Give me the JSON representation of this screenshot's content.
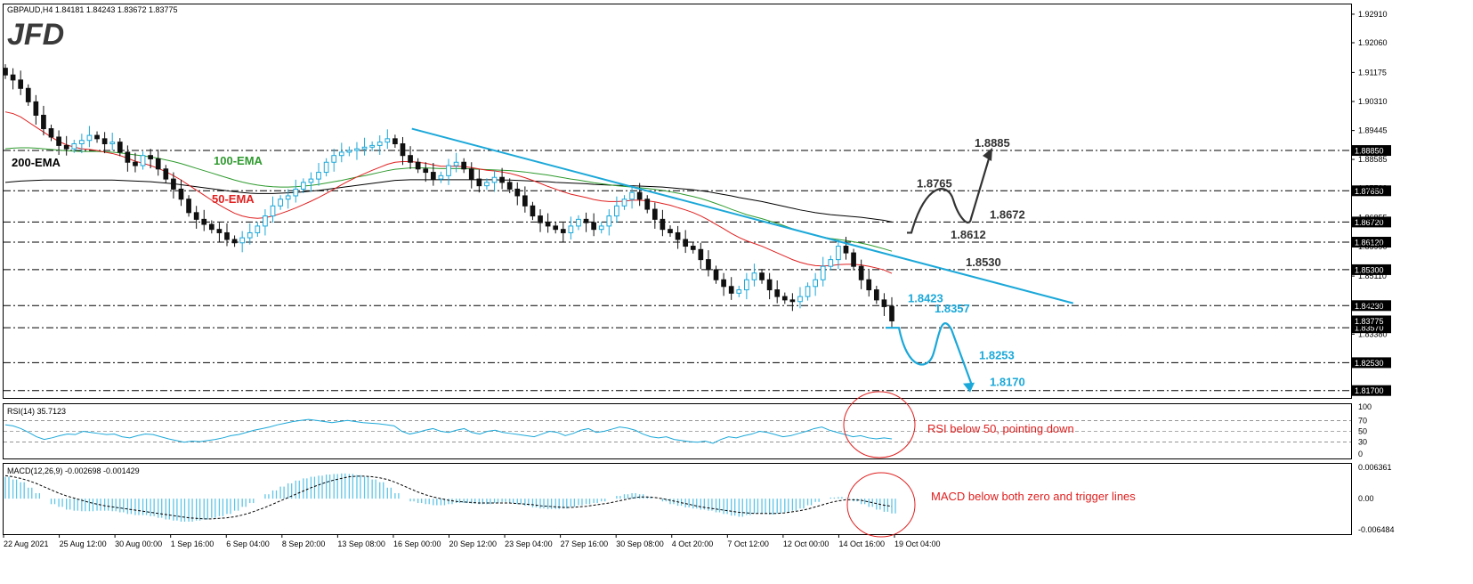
{
  "header": {
    "symbol_info": "GBPAUD,H4  1.84181 1.84243 1.83672 1.83775",
    "logo": "JFD"
  },
  "chart_data": {
    "type": "candlestick",
    "symbol": "GBPAUD",
    "timeframe": "H4",
    "ohlc_last": {
      "open": 1.84181,
      "high": 1.84243,
      "low": 1.83672,
      "close": 1.83775
    },
    "price_axis_ticks": [
      1.9291,
      1.9206,
      1.91175,
      1.9031,
      1.89445,
      1.88585,
      1.8772,
      1.86855,
      1.8599,
      1.8511,
      1.8425,
      1.8338
    ],
    "price_range": [
      1.8148,
      1.932
    ],
    "current_price_label": "1.83775",
    "levels": [
      {
        "value": 1.8885,
        "label": "1.8885",
        "color": "#333333"
      },
      {
        "value": 1.8765,
        "label": "1.8765",
        "color": "#333333"
      },
      {
        "value": 1.8672,
        "label": "1.8672",
        "color": "#333333"
      },
      {
        "value": 1.8612,
        "label": "1.8612",
        "color": "#333333"
      },
      {
        "value": 1.853,
        "label": "1.8530",
        "color": "#333333"
      },
      {
        "value": 1.8423,
        "label": "1.8423",
        "color": "#1ba8d9"
      },
      {
        "value": 1.8357,
        "label": "1.8357",
        "color": "#1ba8d9"
      },
      {
        "value": 1.8253,
        "label": "1.8253",
        "color": "#1ba8d9"
      },
      {
        "value": 1.817,
        "label": "1.8170",
        "color": "#1ba8d9"
      }
    ],
    "level_box_labels": [
      "1.88850",
      "1.87650",
      "1.86720",
      "1.86120",
      "1.85300",
      "1.84230",
      "1.83570",
      "1.82530",
      "1.81700"
    ],
    "ema_labels": [
      {
        "text": "200-EMA",
        "color": "#000000"
      },
      {
        "text": "100-EMA",
        "color": "#2e9a2e"
      },
      {
        "text": "50-EMA",
        "color": "#e02020"
      }
    ],
    "x_axis_labels": [
      "22 Aug 2021",
      "25 Aug 12:00",
      "30 Aug 00:00",
      "1 Sep 16:00",
      "6 Sep 04:00",
      "8 Sep 20:00",
      "13 Sep 08:00",
      "16 Sep 00:00",
      "20 Sep 12:00",
      "23 Sep 04:00",
      "27 Sep 16:00",
      "30 Sep 08:00",
      "4 Oct 20:00",
      "7 Oct 12:00",
      "12 Oct 00:00",
      "14 Oct 16:00",
      "19 Oct 04:00"
    ],
    "closes": [
      1.911,
      1.9095,
      1.907,
      1.903,
      1.899,
      1.895,
      1.8925,
      1.89,
      1.889,
      1.8905,
      1.8915,
      1.893,
      1.892,
      1.8905,
      1.891,
      1.888,
      1.885,
      1.884,
      1.887,
      1.886,
      1.883,
      1.88,
      1.877,
      1.874,
      1.87,
      1.868,
      1.8665,
      1.865,
      1.864,
      1.862,
      1.861,
      1.8625,
      1.864,
      1.866,
      1.869,
      1.872,
      1.874,
      1.875,
      1.877,
      1.879,
      1.88,
      1.882,
      1.885,
      1.887,
      1.888,
      1.8885,
      1.889,
      1.8895,
      1.89,
      1.891,
      1.892,
      1.8905,
      1.887,
      1.885,
      1.883,
      1.882,
      1.88,
      1.881,
      1.884,
      1.885,
      1.883,
      1.88,
      1.878,
      1.879,
      1.8805,
      1.879,
      1.877,
      1.875,
      1.872,
      1.869,
      1.867,
      1.866,
      1.865,
      1.864,
      1.866,
      1.868,
      1.867,
      1.865,
      1.866,
      1.869,
      1.872,
      1.874,
      1.876,
      1.874,
      1.871,
      1.868,
      1.865,
      1.864,
      1.862,
      1.86,
      1.859,
      1.856,
      1.853,
      1.85,
      1.848,
      1.846,
      1.847,
      1.85,
      1.852,
      1.85,
      1.847,
      1.845,
      1.844,
      1.8435,
      1.845,
      1.848,
      1.85,
      1.854,
      1.856,
      1.86,
      1.858,
      1.854,
      1.85,
      1.847,
      1.844,
      1.842,
      1.83775
    ],
    "ema50": [
      1.9,
      1.8995,
      1.8985,
      1.897,
      1.8955,
      1.894,
      1.8925,
      1.8912,
      1.8902,
      1.8895,
      1.889,
      1.8888,
      1.8885,
      1.888,
      1.8876,
      1.887,
      1.8862,
      1.8853,
      1.8847,
      1.884,
      1.8832,
      1.8822,
      1.881,
      1.8797,
      1.8782,
      1.8767,
      1.8752,
      1.8737,
      1.8723,
      1.871,
      1.8698,
      1.869,
      1.8685,
      1.8683,
      1.8685,
      1.869,
      1.8697,
      1.8705,
      1.8714,
      1.8724,
      1.8734,
      1.8745,
      1.8757,
      1.877,
      1.8783,
      1.8795,
      1.8806,
      1.8816,
      1.8826,
      1.8835,
      1.8844,
      1.885,
      1.8852,
      1.8852,
      1.885,
      1.8847,
      1.8842,
      1.8838,
      1.8838,
      1.8838,
      1.8837,
      1.8834,
      1.883,
      1.8826,
      1.8824,
      1.8821,
      1.8817,
      1.8811,
      1.8804,
      1.8796,
      1.8787,
      1.8778,
      1.877,
      1.8762,
      1.8755,
      1.875,
      1.8745,
      1.8739,
      1.8735,
      1.8733,
      1.8733,
      1.8734,
      1.8737,
      1.8737,
      1.8735,
      1.8732,
      1.8727,
      1.8722,
      1.8715,
      1.8708,
      1.87,
      1.869,
      1.8678,
      1.8665,
      1.8652,
      1.8638,
      1.8626,
      1.8616,
      1.8608,
      1.86,
      1.859,
      1.858,
      1.857,
      1.856,
      1.8552,
      1.8546,
      1.8542,
      1.8541,
      1.8542,
      1.8545,
      1.8546,
      1.8546,
      1.8544,
      1.854,
      1.8535,
      1.8529,
      1.8519
    ],
    "ema100": [
      1.889,
      1.8892,
      1.8893,
      1.8893,
      1.8892,
      1.889,
      1.8888,
      1.8886,
      1.8884,
      1.8883,
      1.8882,
      1.8882,
      1.8882,
      1.8881,
      1.888,
      1.8878,
      1.8875,
      1.8872,
      1.8869,
      1.8866,
      1.8862,
      1.8857,
      1.8852,
      1.8846,
      1.8839,
      1.8832,
      1.8825,
      1.8818,
      1.8811,
      1.8804,
      1.8797,
      1.8791,
      1.8786,
      1.8782,
      1.8779,
      1.8777,
      1.8776,
      1.8776,
      1.8777,
      1.8779,
      1.8781,
      1.8784,
      1.8788,
      1.8792,
      1.8796,
      1.8801,
      1.8806,
      1.881,
      1.8815,
      1.882,
      1.8825,
      1.8829,
      1.8831,
      1.8833,
      1.8833,
      1.8833,
      1.8832,
      1.8831,
      1.8831,
      1.8831,
      1.8831,
      1.883,
      1.8829,
      1.8828,
      1.8827,
      1.8826,
      1.8825,
      1.8823,
      1.8821,
      1.8818,
      1.8815,
      1.8812,
      1.8808,
      1.8804,
      1.88,
      1.8797,
      1.8793,
      1.8789,
      1.8786,
      1.8783,
      1.878,
      1.8778,
      1.8776,
      1.8774,
      1.8772,
      1.8769,
      1.8766,
      1.8762,
      1.8758,
      1.8753,
      1.8748,
      1.8742,
      1.8735,
      1.8727,
      1.8719,
      1.871,
      1.8702,
      1.8694,
      1.8688,
      1.8682,
      1.8675,
      1.8668,
      1.866,
      1.8652,
      1.8645,
      1.8638,
      1.8632,
      1.8627,
      1.8623,
      1.862,
      1.8617,
      1.8613,
      1.8609,
      1.8604,
      1.8598,
      1.8592,
      1.8585
    ],
    "ema200": [
      1.879,
      1.8792,
      1.8794,
      1.8795,
      1.8796,
      1.8797,
      1.8797,
      1.8797,
      1.8797,
      1.8797,
      1.8797,
      1.8797,
      1.8797,
      1.8797,
      1.8797,
      1.8796,
      1.8795,
      1.8794,
      1.8793,
      1.8792,
      1.879,
      1.8788,
      1.8786,
      1.8783,
      1.878,
      1.8777,
      1.8774,
      1.8771,
      1.8768,
      1.8765,
      1.8762,
      1.876,
      1.8758,
      1.8757,
      1.8757,
      1.8757,
      1.8758,
      1.8759,
      1.876,
      1.8762,
      1.8764,
      1.8766,
      1.8769,
      1.8772,
      1.8775,
      1.8778,
      1.8781,
      1.8784,
      1.8787,
      1.879,
      1.8793,
      1.8796,
      1.8797,
      1.8798,
      1.8798,
      1.8798,
      1.8798,
      1.8798,
      1.8798,
      1.8798,
      1.8798,
      1.8798,
      1.8798,
      1.8798,
      1.8798,
      1.8797,
      1.8797,
      1.8796,
      1.8795,
      1.8794,
      1.8793,
      1.8792,
      1.879,
      1.8789,
      1.8788,
      1.8787,
      1.8786,
      1.8784,
      1.8783,
      1.8782,
      1.8781,
      1.8781,
      1.878,
      1.8779,
      1.8778,
      1.8777,
      1.8776,
      1.8774,
      1.8772,
      1.877,
      1.8768,
      1.8765,
      1.8762,
      1.8758,
      1.8754,
      1.875,
      1.8745,
      1.8741,
      1.8737,
      1.8733,
      1.8728,
      1.8723,
      1.8718,
      1.8713,
      1.8708,
      1.8704,
      1.87,
      1.8697,
      1.8694,
      1.8692,
      1.869,
      1.8688,
      1.8686,
      1.8683,
      1.868,
      1.8677,
      1.8672
    ],
    "downtrend_line": {
      "from": [
        0.303,
        1.895
      ],
      "to": [
        0.77,
        1.843
      ]
    },
    "scenario_up": [
      1.864,
      1.8765,
      1.8672,
      1.8885
    ],
    "scenario_down": [
      1.8357,
      1.8357,
      1.8253,
      1.8357,
      1.817
    ]
  },
  "rsi": {
    "label": "RSI(14) 35.7123",
    "ticks": [
      "100",
      "70",
      "50",
      "30",
      "0"
    ],
    "levels": [
      70,
      50,
      30
    ],
    "annotation": "RSI below 50, pointing down",
    "values": [
      62,
      60,
      55,
      48,
      40,
      35,
      38,
      42,
      45,
      44,
      50,
      48,
      46,
      44,
      45,
      40,
      38,
      42,
      45,
      44,
      40,
      36,
      33,
      30,
      32,
      31,
      33,
      35,
      38,
      42,
      44,
      48,
      52,
      55,
      58,
      62,
      65,
      68,
      70,
      72,
      70,
      68,
      66,
      68,
      70,
      68,
      66,
      65,
      64,
      62,
      60,
      50,
      45,
      48,
      52,
      55,
      50,
      48,
      52,
      55,
      48,
      45,
      50,
      52,
      48,
      46,
      44,
      42,
      40,
      45,
      50,
      48,
      42,
      46,
      52,
      55,
      48,
      50,
      54,
      58,
      56,
      52,
      45,
      40,
      38,
      40,
      35,
      33,
      31,
      30,
      32,
      28,
      35,
      40,
      38,
      42,
      45,
      50,
      48,
      44,
      40,
      42,
      46,
      50,
      55,
      58,
      52,
      48,
      44,
      40,
      42,
      38,
      36,
      38,
      36
    ]
  },
  "macd": {
    "label": "MACD(12,26,9) -0.002698 -0.001429",
    "ticks": [
      "0.006361",
      "0.00",
      "-0.006484"
    ],
    "range": [
      -0.006484,
      0.006361
    ],
    "annotation": "MACD below both zero and trigger lines",
    "hist": [
      0.004,
      0.0035,
      0.003,
      0.002,
      0.001,
      0.0,
      -0.001,
      -0.0015,
      -0.002,
      -0.0022,
      -0.0023,
      -0.0023,
      -0.0022,
      -0.0022,
      -0.0023,
      -0.0025,
      -0.0028,
      -0.003,
      -0.003,
      -0.0032,
      -0.0035,
      -0.0038,
      -0.004,
      -0.0042,
      -0.0042,
      -0.004,
      -0.0038,
      -0.0035,
      -0.0032,
      -0.0028,
      -0.0022,
      -0.0015,
      -0.0008,
      0.0,
      0.0008,
      0.0015,
      0.0022,
      0.0028,
      0.0033,
      0.0037,
      0.004,
      0.0042,
      0.0044,
      0.0045,
      0.0046,
      0.0045,
      0.0043,
      0.004,
      0.0035,
      0.003,
      0.002,
      0.001,
      0.0,
      -0.0005,
      -0.0008,
      -0.001,
      -0.0012,
      -0.0012,
      -0.001,
      -0.0008,
      -0.0008,
      -0.0009,
      -0.001,
      -0.001,
      -0.0008,
      -0.0006,
      -0.0008,
      -0.001,
      -0.0013,
      -0.0016,
      -0.0018,
      -0.0019,
      -0.0019,
      -0.0018,
      -0.0015,
      -0.0012,
      -0.001,
      -0.0008,
      -0.0005,
      0.0,
      0.0005,
      0.0008,
      0.001,
      0.0008,
      0.0004,
      0.0,
      -0.0005,
      -0.001,
      -0.0013,
      -0.0016,
      -0.0018,
      -0.002,
      -0.0022,
      -0.0025,
      -0.0028,
      -0.0031,
      -0.0033,
      -0.003,
      -0.0027,
      -0.0028,
      -0.0029,
      -0.0027,
      -0.0025,
      -0.0022,
      -0.0018,
      -0.0012,
      -0.0006,
      0.0,
      0.0002,
      0.0003,
      0.0001,
      -0.0005,
      -0.001,
      -0.0015,
      -0.002,
      -0.0024,
      -0.0027
    ],
    "signal": [
      0.0042,
      0.004,
      0.0037,
      0.0033,
      0.0028,
      0.0022,
      0.0016,
      0.001,
      0.0005,
      0.0001,
      -0.0003,
      -0.0007,
      -0.001,
      -0.0013,
      -0.0015,
      -0.0017,
      -0.0019,
      -0.0021,
      -0.0023,
      -0.0025,
      -0.0027,
      -0.0029,
      -0.0031,
      -0.0033,
      -0.0035,
      -0.0036,
      -0.0037,
      -0.0037,
      -0.0036,
      -0.0035,
      -0.0033,
      -0.003,
      -0.0026,
      -0.0021,
      -0.0016,
      -0.001,
      -0.0004,
      0.0002,
      0.0008,
      0.0014,
      0.002,
      0.0025,
      0.003,
      0.0034,
      0.0037,
      0.004,
      0.0041,
      0.0041,
      0.004,
      0.0038,
      0.0035,
      0.003,
      0.0024,
      0.0018,
      0.0012,
      0.0007,
      0.0003,
      0.0,
      -0.0003,
      -0.0005,
      -0.0006,
      -0.0007,
      -0.0008,
      -0.0008,
      -0.0008,
      -0.0008,
      -0.0008,
      -0.0009,
      -0.001,
      -0.0011,
      -0.0013,
      -0.0014,
      -0.0015,
      -0.0016,
      -0.0016,
      -0.0015,
      -0.0014,
      -0.0012,
      -0.001,
      -0.0008,
      -0.0005,
      -0.0002,
      0.0001,
      0.0003,
      0.0003,
      0.0002,
      0.0,
      -0.0003,
      -0.0006,
      -0.0009,
      -0.0012,
      -0.0015,
      -0.0017,
      -0.0019,
      -0.0021,
      -0.0023,
      -0.0025,
      -0.0026,
      -0.0027,
      -0.0027,
      -0.0027,
      -0.0027,
      -0.0026,
      -0.0024,
      -0.0022,
      -0.0019,
      -0.0015,
      -0.0011,
      -0.0007,
      -0.0004,
      -0.0002,
      -0.0002,
      -0.0003,
      -0.0006,
      -0.0009,
      -0.0012,
      -0.0014
    ]
  },
  "colors": {
    "candle_bull": "#1ba8d9",
    "candle_bear": "#111111",
    "ema50": "#e02020",
    "ema100": "#2e9a2e",
    "ema200": "#000000",
    "trend": "#1ba8d9",
    "annotation": "#e02020",
    "macd_hist": "#5ec5e8"
  }
}
